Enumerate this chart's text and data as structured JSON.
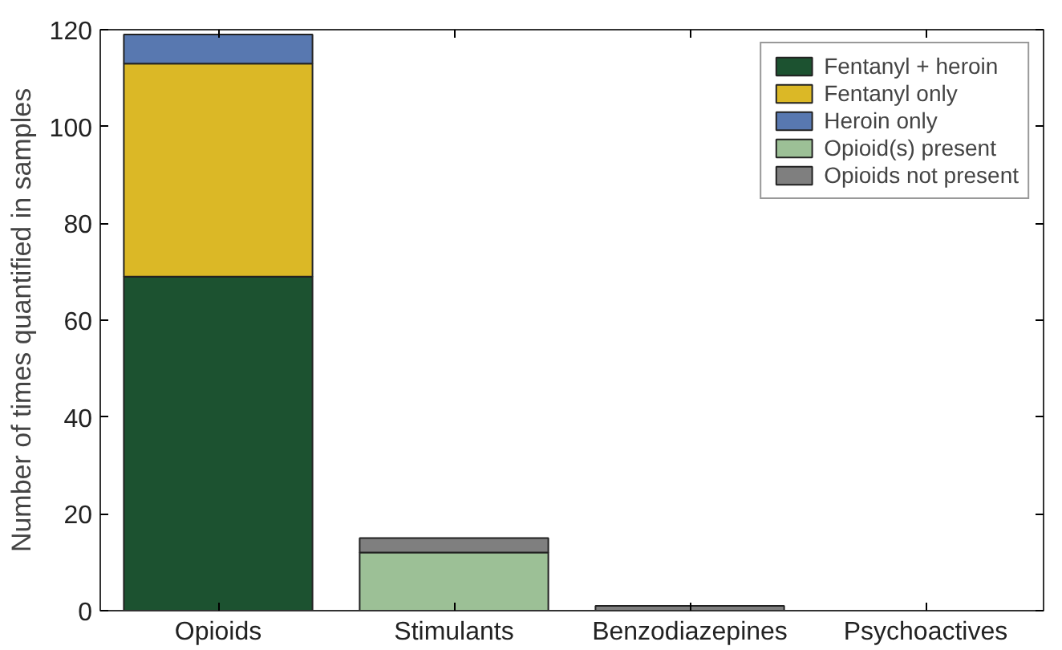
{
  "chart_data": {
    "type": "bar",
    "stacked": true,
    "ylabel": "Number of times quantified in samples",
    "categories": [
      "Opioids",
      "Stimulants",
      "Benzodiazepines",
      "Psychoactives"
    ],
    "ylim": [
      0,
      120
    ],
    "yticks": [
      0,
      20,
      40,
      60,
      80,
      100,
      120
    ],
    "grid": false,
    "legend": "top right",
    "series": [
      {
        "name": "Fentanyl + heroin",
        "color": "#1c5230",
        "values": [
          69,
          null,
          null,
          null
        ]
      },
      {
        "name": "Fentanyl only",
        "color": "#dbb826",
        "values": [
          44,
          null,
          null,
          null
        ]
      },
      {
        "name": "Heroin only",
        "color": "#5878b0",
        "values": [
          6,
          null,
          null,
          null
        ]
      },
      {
        "name": "Opioid(s) present",
        "color": "#9cc096",
        "values": [
          null,
          12,
          null,
          null
        ]
      },
      {
        "name": "Opioids not present",
        "color": "#7f7f7f",
        "values": [
          null,
          3,
          1,
          null
        ]
      }
    ]
  }
}
